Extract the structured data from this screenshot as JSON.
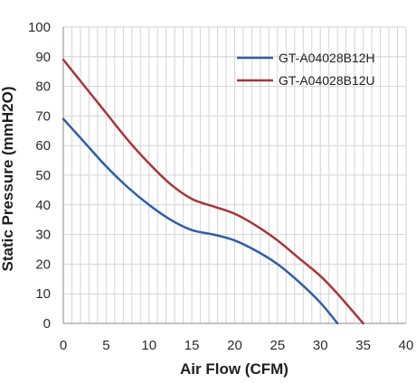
{
  "chart_data": {
    "type": "line",
    "title": "",
    "xlabel": "Air Flow (CFM)",
    "ylabel": "Static Pressure (mmH2O)",
    "xlim": [
      0,
      40
    ],
    "ylim": [
      0,
      100
    ],
    "x_ticks": [
      0,
      5,
      10,
      15,
      20,
      25,
      30,
      35,
      40
    ],
    "y_ticks": [
      0,
      10,
      20,
      30,
      40,
      50,
      60,
      70,
      80,
      90,
      100
    ],
    "x_minor_grid_step": 1,
    "grid": true,
    "legend_position": "top-right",
    "series": [
      {
        "name": "GT-A04028B12H",
        "color": "#2e5ea8",
        "points": [
          [
            0,
            69
          ],
          [
            2.5,
            61
          ],
          [
            5,
            53
          ],
          [
            7.5,
            46
          ],
          [
            10,
            40
          ],
          [
            12.5,
            35
          ],
          [
            15,
            31.5
          ],
          [
            17.5,
            30
          ],
          [
            20,
            28
          ],
          [
            22.5,
            24.5
          ],
          [
            25,
            20
          ],
          [
            27.5,
            14
          ],
          [
            30,
            7
          ],
          [
            32,
            0
          ]
        ]
      },
      {
        "name": "GT-A04028B12U",
        "color": "#a8353a",
        "points": [
          [
            0,
            89
          ],
          [
            2.5,
            80
          ],
          [
            5,
            71
          ],
          [
            7.5,
            62
          ],
          [
            10,
            54
          ],
          [
            12.5,
            47
          ],
          [
            15,
            42
          ],
          [
            17.5,
            39.5
          ],
          [
            20,
            37
          ],
          [
            22.5,
            33
          ],
          [
            25,
            28
          ],
          [
            27.5,
            22
          ],
          [
            30,
            16
          ],
          [
            32,
            10
          ],
          [
            35,
            0
          ]
        ]
      }
    ]
  }
}
